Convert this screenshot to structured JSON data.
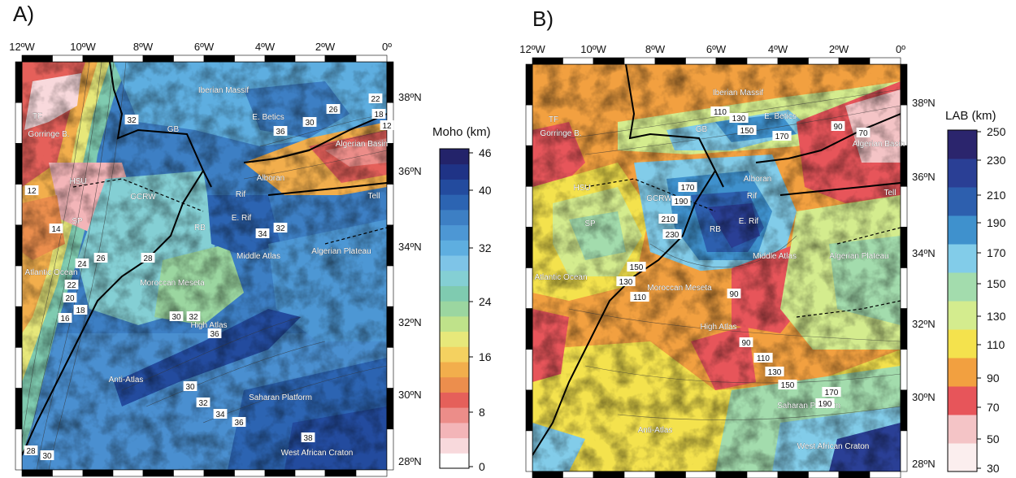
{
  "panelA": {
    "letter": "A)",
    "lon_ticks": [
      "12ºW",
      "10ºW",
      "8ºW",
      "6ºW",
      "4ºW",
      "2ºW",
      "0º"
    ],
    "lat_ticks": [
      "38ºN",
      "36ºN",
      "34ºN",
      "32ºN",
      "30ºN",
      "28ºN"
    ],
    "colorbar_title": "Moho (km)",
    "colorbar_ticks": [
      "46",
      "40",
      "32",
      "24",
      "16",
      "8",
      "0"
    ],
    "place_labels": [
      "Iberian Massif",
      "GB",
      "E. Betics",
      "Gorringe B.",
      "TF",
      "HSU",
      "GCRW",
      "Alboran",
      "Rif",
      "E. Rif",
      "RB",
      "Atlantic Ocean",
      "Moroccan Meseta",
      "Middle Atlas",
      "Algerian Plateau",
      "Algerian Basin",
      "Tell",
      "High Atlas",
      "Anti-Atlas",
      "Saharan Platform",
      "West African Craton",
      "SP"
    ],
    "contour_labels": [
      "32",
      "26",
      "36",
      "30",
      "22",
      "18",
      "12",
      "12",
      "14",
      "24",
      "26",
      "28",
      "22",
      "20",
      "18",
      "16",
      "32",
      "34",
      "30",
      "32",
      "36",
      "30",
      "32",
      "34",
      "36",
      "38",
      "28",
      "30"
    ]
  },
  "panelB": {
    "letter": "B)",
    "lon_ticks": [
      "12ºW",
      "10ºW",
      "8ºW",
      "6ºW",
      "4ºW",
      "2ºW",
      "0º"
    ],
    "lat_ticks": [
      "38ºN",
      "36ºN",
      "34ºN",
      "32ºN",
      "30ºN",
      "28ºN"
    ],
    "colorbar_title": "LAB (km)",
    "colorbar_ticks": [
      "250",
      "230",
      "210",
      "190",
      "170",
      "150",
      "130",
      "110",
      "90",
      "70",
      "50",
      "30"
    ],
    "place_labels": [
      "Iberian Massif",
      "GB",
      "E. Betics",
      "Gorringe B.",
      "TF",
      "HSU",
      "GCRW",
      "Alboran",
      "Rif",
      "E. Rif",
      "RB",
      "Atlantic Ocean",
      "Moroccan Meseta",
      "Middle Atlas",
      "Algerian Plateau",
      "Algerian Basin",
      "Tell",
      "High Atlas",
      "Anti-Atlas",
      "Saharan Platform",
      "West African Craton",
      "SP"
    ],
    "contour_labels": [
      "110",
      "130",
      "150",
      "170",
      "90",
      "70",
      "170",
      "190",
      "210",
      "230",
      "150",
      "130",
      "110",
      "90",
      "90",
      "110",
      "130",
      "150",
      "170",
      "190"
    ]
  },
  "moho_colors": [
    "#ffffff",
    "#f8d9dc",
    "#f3b5b8",
    "#ec8d89",
    "#e5605a",
    "#ec8e4d",
    "#f2ae4c",
    "#f4d160",
    "#e7e87a",
    "#bfe28a",
    "#9bd6a0",
    "#7fcbb0",
    "#84cfd4",
    "#7ec4e7",
    "#5eaee0",
    "#4d97d4",
    "#3d7fc4",
    "#2c64b2",
    "#234b9e",
    "#1f3386",
    "#23236a"
  ],
  "lab_colors": [
    "#fbeeee",
    "#f4c4c6",
    "#e7555a",
    "#f2a040",
    "#f4e24d",
    "#d4ec8e",
    "#a3dcad",
    "#82cce9",
    "#3f91cd",
    "#2d5fae",
    "#2a3f95",
    "#2b256d"
  ]
}
